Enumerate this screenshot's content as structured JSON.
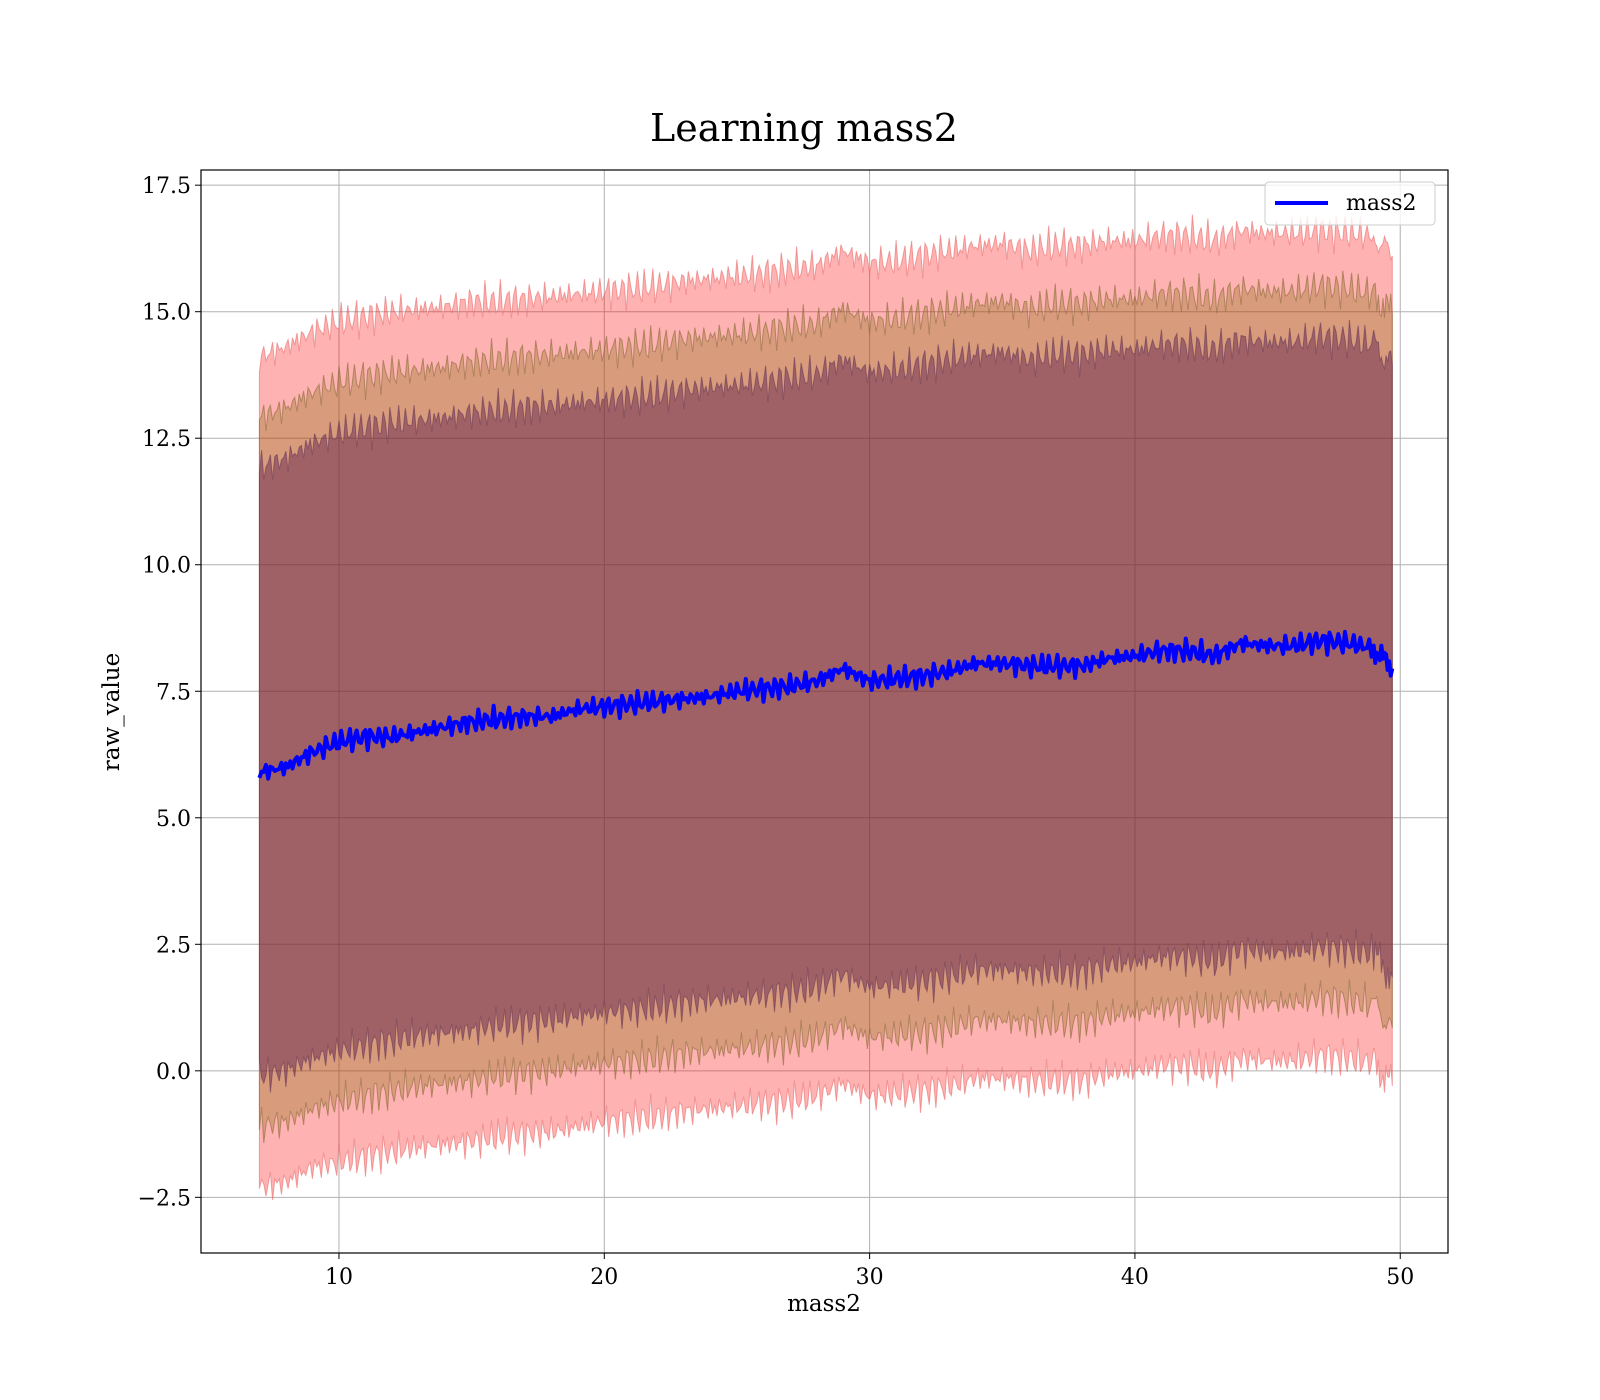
{
  "chart_data": {
    "type": "line",
    "title": "Learning mass2",
    "xlabel": "mass2",
    "ylabel": "raw_value",
    "xlim": [
      4.8,
      51.8
    ],
    "ylim": [
      -3.6,
      17.8
    ],
    "x_ticks": [
      10,
      20,
      30,
      40,
      50
    ],
    "x_tick_labels": [
      "10",
      "20",
      "30",
      "40",
      "50"
    ],
    "y_ticks": [
      -2.5,
      0.0,
      2.5,
      5.0,
      7.5,
      10.0,
      12.5,
      15.0,
      17.5
    ],
    "y_tick_labels": [
      "−2.5",
      "0.0",
      "2.5",
      "5.0",
      "7.5",
      "10.0",
      "12.5",
      "15.0",
      "17.5"
    ],
    "grid": true,
    "legend": {
      "position": "top-right",
      "entries": [
        "mass2"
      ]
    },
    "colors": {
      "line": "#0000ff",
      "band_outer": "#ff0000",
      "band_middle": "#7f6a00",
      "band_inner": "#5a1a4a",
      "grid": "#b0b0b0"
    },
    "x": [
      7.0,
      8.0,
      9.0,
      10.0,
      11.0,
      12.0,
      13.0,
      14.0,
      15.0,
      16.0,
      17.0,
      18.0,
      19.0,
      20.0,
      21.0,
      22.0,
      23.0,
      24.0,
      25.0,
      26.0,
      27.0,
      28.0,
      29.0,
      30.0,
      31.0,
      32.0,
      33.0,
      34.0,
      35.0,
      36.0,
      37.0,
      38.0,
      39.0,
      40.0,
      41.0,
      42.0,
      43.0,
      44.0,
      45.0,
      46.0,
      47.0,
      48.0,
      49.0,
      49.7
    ],
    "series": [
      {
        "name": "mass2",
        "kind": "line",
        "values": [
          5.9,
          6.0,
          6.3,
          6.5,
          6.6,
          6.6,
          6.7,
          6.8,
          6.9,
          6.95,
          7.0,
          7.0,
          7.15,
          7.2,
          7.25,
          7.3,
          7.35,
          7.4,
          7.5,
          7.55,
          7.6,
          7.7,
          7.95,
          7.7,
          7.75,
          7.8,
          7.9,
          8.05,
          8.05,
          8.0,
          8.0,
          8.0,
          8.15,
          8.2,
          8.3,
          8.3,
          8.2,
          8.45,
          8.4,
          8.4,
          8.5,
          8.45,
          8.35,
          7.95
        ]
      },
      {
        "name": "",
        "kind": "band",
        "level": "outer",
        "upper": [
          14.1,
          14.3,
          14.6,
          14.8,
          14.9,
          15.0,
          15.05,
          15.1,
          15.2,
          15.2,
          15.25,
          15.3,
          15.35,
          15.4,
          15.45,
          15.5,
          15.6,
          15.65,
          15.7,
          15.75,
          15.85,
          15.9,
          16.2,
          15.95,
          16.0,
          16.1,
          16.2,
          16.3,
          16.35,
          16.2,
          16.3,
          16.3,
          16.4,
          16.4,
          16.5,
          16.5,
          16.4,
          16.6,
          16.55,
          16.55,
          16.6,
          16.55,
          16.5,
          16.1
        ],
        "lower": [
          -2.3,
          -2.2,
          -1.9,
          -1.8,
          -1.7,
          -1.6,
          -1.5,
          -1.45,
          -1.4,
          -1.3,
          -1.25,
          -1.2,
          -1.1,
          -1.0,
          -0.95,
          -0.9,
          -0.8,
          -0.75,
          -0.7,
          -0.65,
          -0.6,
          -0.5,
          -0.25,
          -0.5,
          -0.45,
          -0.4,
          -0.3,
          -0.15,
          -0.15,
          -0.2,
          -0.2,
          -0.2,
          -0.05,
          0.0,
          0.1,
          0.1,
          0.0,
          0.25,
          0.2,
          0.2,
          0.3,
          0.25,
          0.15,
          -0.3
        ]
      },
      {
        "name": "",
        "kind": "band",
        "level": "middle",
        "upper": [
          12.9,
          13.1,
          13.4,
          13.6,
          13.7,
          13.8,
          13.85,
          13.9,
          14.0,
          14.05,
          14.1,
          14.15,
          14.2,
          14.25,
          14.3,
          14.35,
          14.45,
          14.5,
          14.55,
          14.6,
          14.7,
          14.75,
          15.05,
          14.8,
          14.85,
          14.95,
          15.05,
          15.15,
          15.2,
          15.05,
          15.15,
          15.15,
          15.25,
          15.25,
          15.35,
          15.35,
          15.25,
          15.45,
          15.4,
          15.4,
          15.5,
          15.45,
          15.35,
          14.95
        ],
        "lower": [
          -1.1,
          -1.0,
          -0.75,
          -0.6,
          -0.5,
          -0.4,
          -0.3,
          -0.25,
          -0.2,
          -0.1,
          -0.05,
          0.0,
          0.1,
          0.15,
          0.2,
          0.25,
          0.35,
          0.4,
          0.45,
          0.5,
          0.55,
          0.65,
          0.9,
          0.65,
          0.7,
          0.75,
          0.85,
          1.0,
          1.0,
          0.95,
          0.95,
          0.95,
          1.1,
          1.15,
          1.25,
          1.25,
          1.15,
          1.4,
          1.35,
          1.35,
          1.45,
          1.4,
          1.3,
          0.85
        ]
      },
      {
        "name": "",
        "kind": "band",
        "level": "inner",
        "upper": [
          11.9,
          12.1,
          12.4,
          12.6,
          12.7,
          12.8,
          12.85,
          12.9,
          13.0,
          13.05,
          13.1,
          13.15,
          13.2,
          13.25,
          13.3,
          13.35,
          13.45,
          13.5,
          13.55,
          13.6,
          13.7,
          13.75,
          14.05,
          13.8,
          13.85,
          13.95,
          14.05,
          14.15,
          14.2,
          14.05,
          14.15,
          14.15,
          14.25,
          14.25,
          14.35,
          14.35,
          14.25,
          14.45,
          14.4,
          14.4,
          14.5,
          14.45,
          14.35,
          13.95
        ],
        "lower": [
          -0.1,
          0.0,
          0.25,
          0.4,
          0.5,
          0.6,
          0.7,
          0.75,
          0.8,
          0.9,
          0.95,
          1.0,
          1.1,
          1.15,
          1.2,
          1.25,
          1.35,
          1.4,
          1.45,
          1.5,
          1.55,
          1.65,
          1.9,
          1.65,
          1.7,
          1.75,
          1.85,
          2.0,
          2.0,
          1.95,
          1.95,
          1.95,
          2.1,
          2.15,
          2.25,
          2.25,
          2.15,
          2.4,
          2.35,
          2.35,
          2.45,
          2.4,
          2.3,
          1.85
        ]
      }
    ]
  }
}
